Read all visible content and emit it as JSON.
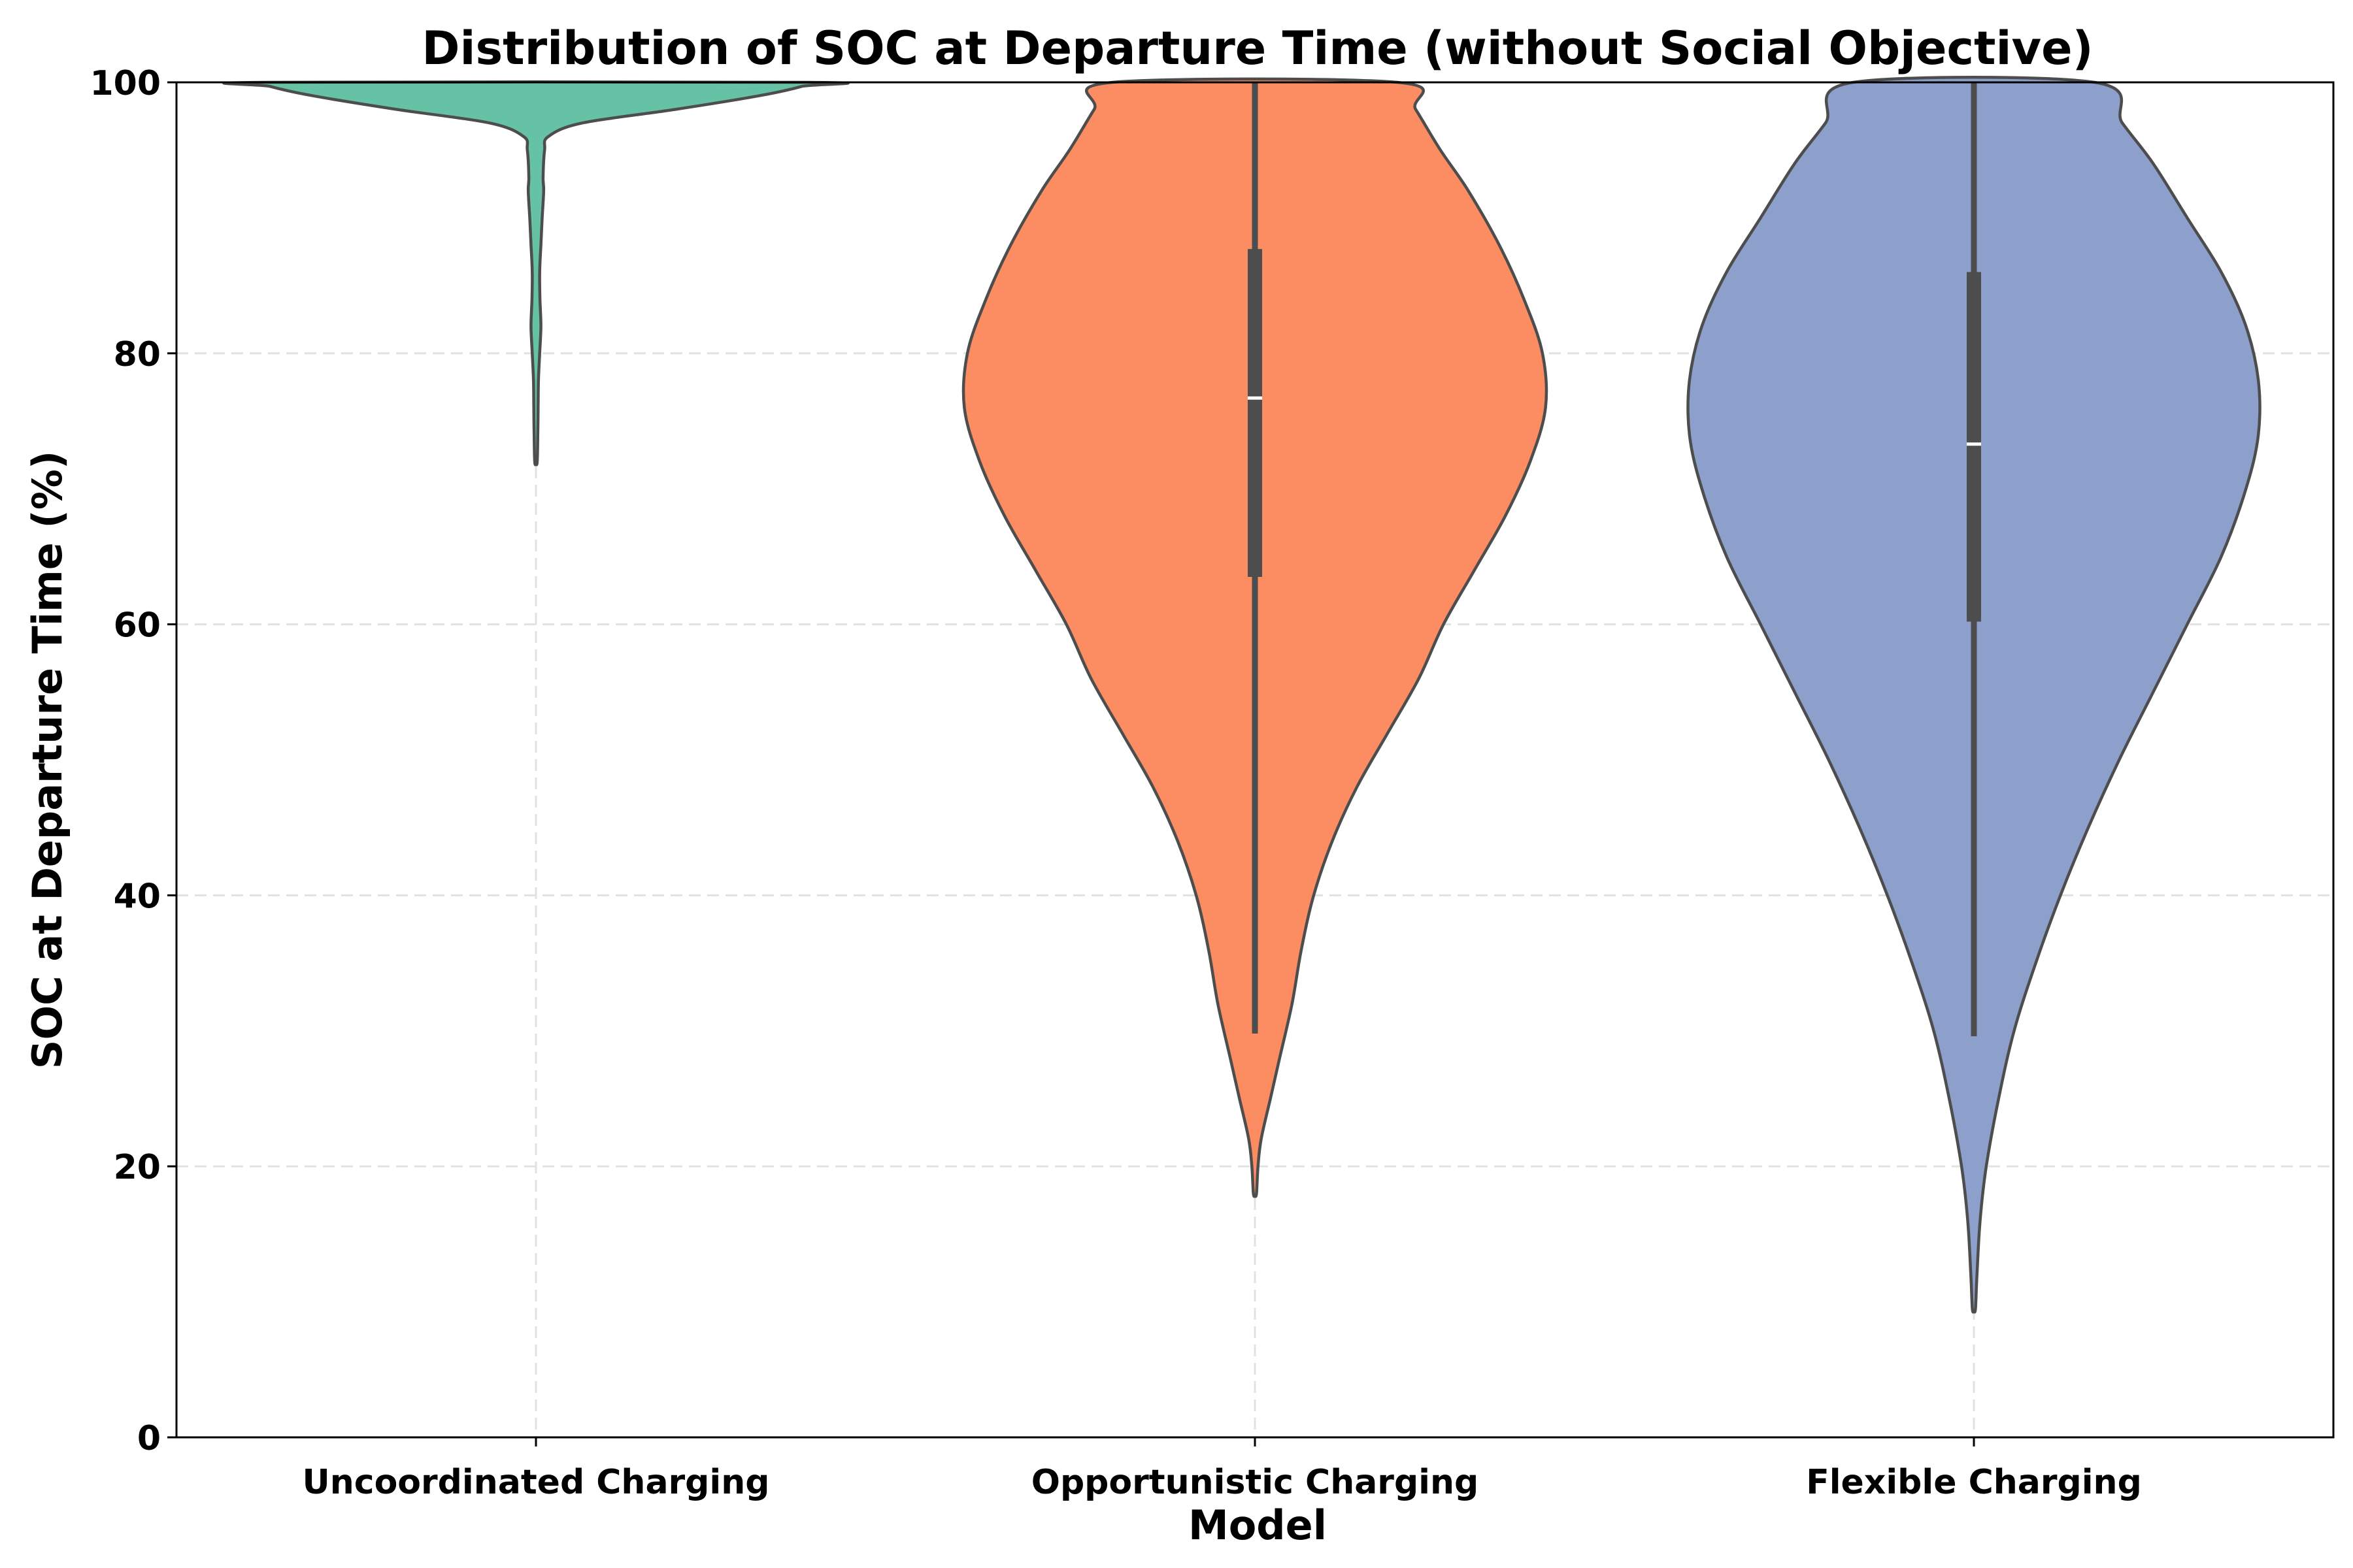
{
  "chart_data": {
    "type": "violin",
    "title": "Distribution of SOC at Departure Time (without Social Objective)",
    "xlabel": "Model",
    "ylabel": "SOC at Departure Time (%)",
    "ylim": [
      0,
      100
    ],
    "yticks": [
      0,
      20,
      40,
      60,
      80,
      100
    ],
    "grid": true,
    "categories": [
      "Uncoordinated Charging",
      "Opportunistic Charging",
      "Flexible Charging"
    ],
    "series": [
      {
        "category": "Uncoordinated Charging",
        "color": "#66c2a5",
        "median": 100,
        "q1": 100,
        "q3": 100,
        "whisker_low": 100,
        "whisker_high": 100,
        "min": 72,
        "max": 100,
        "density_profile": [
          [
            72,
            0.004
          ],
          [
            74,
            0.006
          ],
          [
            76,
            0.007
          ],
          [
            78,
            0.008
          ],
          [
            80,
            0.012
          ],
          [
            82,
            0.016
          ],
          [
            84,
            0.013
          ],
          [
            86,
            0.012
          ],
          [
            88,
            0.016
          ],
          [
            90,
            0.02
          ],
          [
            92,
            0.025
          ],
          [
            93,
            0.023
          ],
          [
            95,
            0.028
          ],
          [
            96,
            0.04
          ],
          [
            97,
            0.15
          ],
          [
            98,
            0.45
          ],
          [
            99,
            0.72
          ],
          [
            99.7,
            0.86
          ],
          [
            100,
            0.88
          ]
        ]
      },
      {
        "category": "Opportunistic Charging",
        "color": "#fc8d62",
        "median": 76.7,
        "q1": 63.5,
        "q3": 87.7,
        "whisker_low": 29.8,
        "whisker_high": 100,
        "min": 18,
        "max": 100,
        "density_profile": [
          [
            18,
            0.005
          ],
          [
            20,
            0.01
          ],
          [
            22,
            0.02
          ],
          [
            25,
            0.05
          ],
          [
            28,
            0.08
          ],
          [
            32,
            0.12
          ],
          [
            36,
            0.15
          ],
          [
            40,
            0.19
          ],
          [
            44,
            0.25
          ],
          [
            48,
            0.33
          ],
          [
            52,
            0.43
          ],
          [
            56,
            0.53
          ],
          [
            60,
            0.61
          ],
          [
            64,
            0.71
          ],
          [
            68,
            0.81
          ],
          [
            72,
            0.89
          ],
          [
            76,
            0.94
          ],
          [
            80,
            0.93
          ],
          [
            84,
            0.87
          ],
          [
            88,
            0.79
          ],
          [
            92,
            0.69
          ],
          [
            95,
            0.6
          ],
          [
            98,
            0.52
          ],
          [
            100,
            0.46
          ]
        ]
      },
      {
        "category": "Flexible Charging",
        "color": "#8da0cb",
        "median": 73.3,
        "q1": 60.2,
        "q3": 86.0,
        "whisker_low": 29.6,
        "whisker_high": 100,
        "min": 9.5,
        "max": 100,
        "density_profile": [
          [
            9.5,
            0.005
          ],
          [
            12,
            0.01
          ],
          [
            16,
            0.02
          ],
          [
            20,
            0.04
          ],
          [
            25,
            0.08
          ],
          [
            30,
            0.13
          ],
          [
            35,
            0.2
          ],
          [
            40,
            0.28
          ],
          [
            45,
            0.37
          ],
          [
            50,
            0.47
          ],
          [
            55,
            0.58
          ],
          [
            60,
            0.69
          ],
          [
            65,
            0.8
          ],
          [
            70,
            0.88
          ],
          [
            74,
            0.92
          ],
          [
            78,
            0.92
          ],
          [
            82,
            0.88
          ],
          [
            86,
            0.8
          ],
          [
            90,
            0.69
          ],
          [
            94,
            0.58
          ],
          [
            97,
            0.48
          ],
          [
            100,
            0.39
          ]
        ]
      }
    ]
  }
}
